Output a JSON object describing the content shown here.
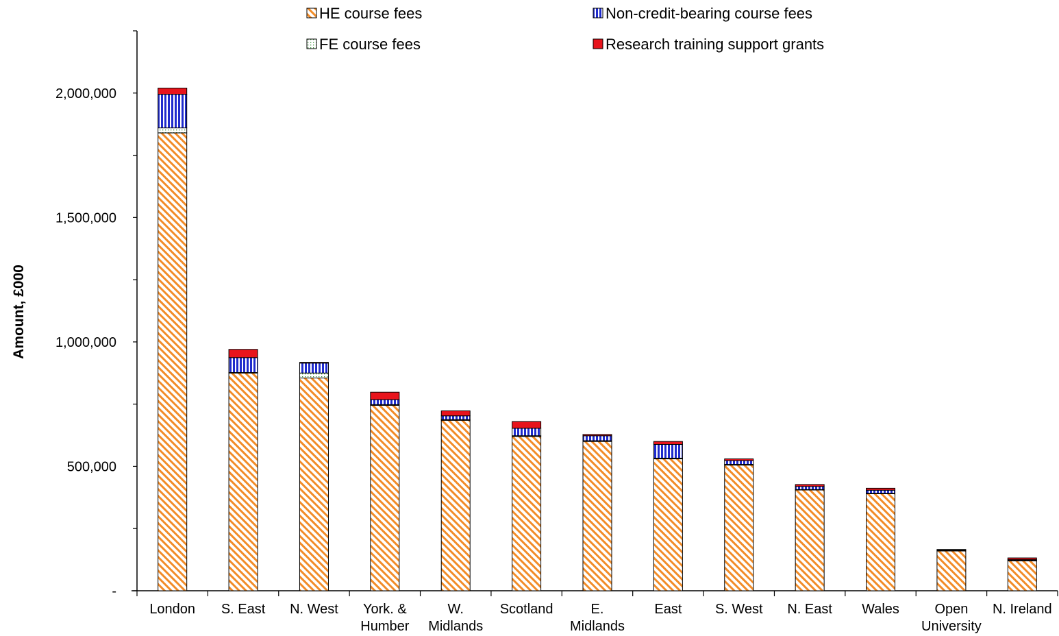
{
  "chart_data": {
    "type": "bar",
    "stacked": true,
    "title": "",
    "xlabel": "",
    "ylabel": "Amount, £000",
    "ylim": [
      0,
      2250000
    ],
    "yticks": [
      0,
      500000,
      1000000,
      1500000,
      2000000
    ],
    "ytick_labels": [
      "-",
      "500,000",
      "1,000,000",
      "1,500,000",
      "2,000,000"
    ],
    "grid": false,
    "legend_position": "top",
    "categories": [
      [
        "London"
      ],
      [
        "S. East"
      ],
      [
        "N. West"
      ],
      [
        "York. &",
        "Humber"
      ],
      [
        "W.",
        "Midlands"
      ],
      [
        "Scotland"
      ],
      [
        "E.",
        "Midlands"
      ],
      [
        "East"
      ],
      [
        "S. West"
      ],
      [
        "N. East"
      ],
      [
        "Wales"
      ],
      [
        "Open",
        "University"
      ],
      [
        "N. Ireland"
      ]
    ],
    "series": [
      {
        "name": "HE course fees",
        "pattern": "diagonal-hatch",
        "color": "#F28C28",
        "values": [
          1840000,
          875000,
          855000,
          745000,
          685000,
          620000,
          600000,
          530000,
          505000,
          405000,
          390000,
          160000,
          120000
        ]
      },
      {
        "name": "FE course fees",
        "pattern": "dotted",
        "color": "#2E8B2E",
        "values": [
          20000,
          2000,
          20000,
          3000,
          3000,
          3000,
          3000,
          3000,
          3000,
          2000,
          2000,
          2000,
          2000
        ]
      },
      {
        "name": "Non-credit-bearing course fees",
        "pattern": "vertical-lines",
        "color": "#1F2BCC",
        "values": [
          135000,
          60000,
          40000,
          20000,
          15000,
          30000,
          20000,
          55000,
          15000,
          12000,
          12000,
          2000,
          3000
        ]
      },
      {
        "name": "Research training support grants",
        "pattern": "solid",
        "color": "#E8141C",
        "values": [
          25000,
          33000,
          3000,
          30000,
          20000,
          27000,
          5000,
          12000,
          7000,
          8000,
          8000,
          2000,
          7000
        ]
      }
    ],
    "legend_order": [
      "HE course fees",
      "Non-credit-bearing course fees",
      "FE course fees",
      "Research training support grants"
    ]
  }
}
